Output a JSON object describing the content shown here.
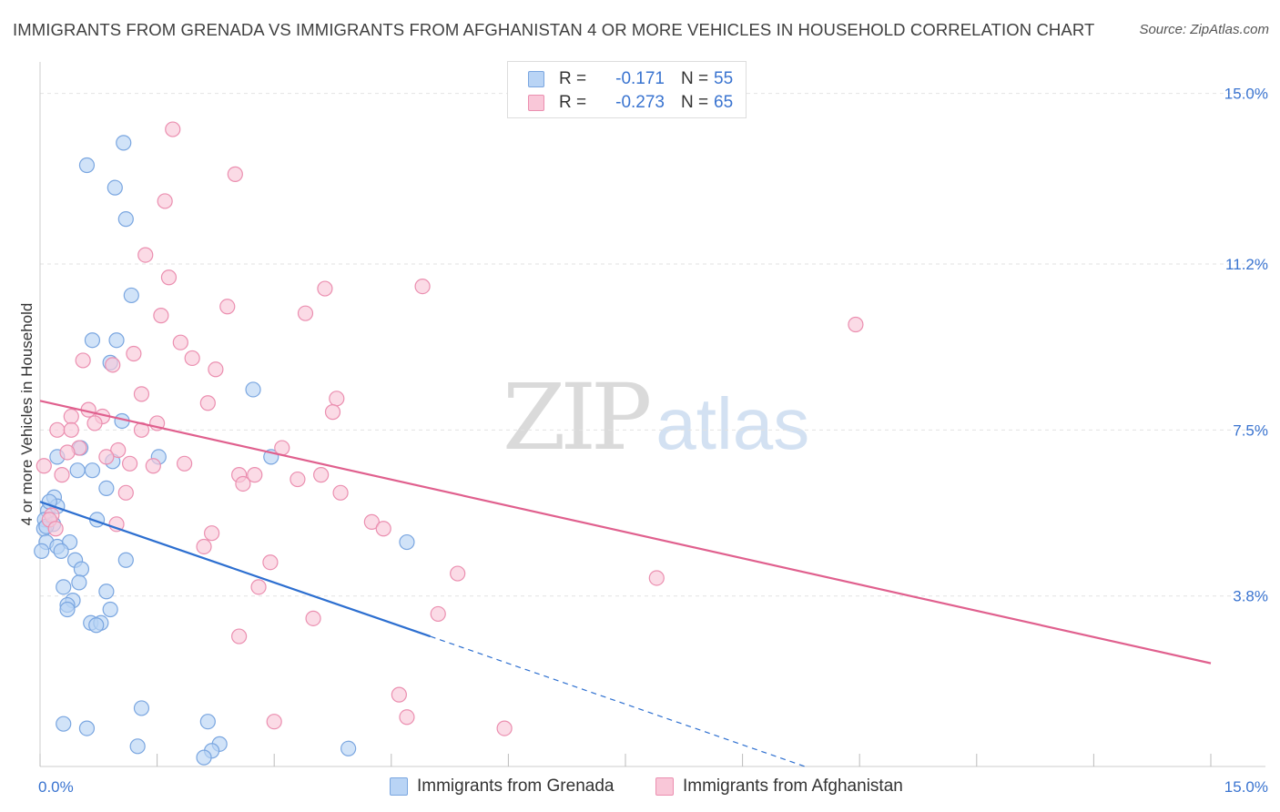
{
  "title": "IMMIGRANTS FROM GRENADA VS IMMIGRANTS FROM AFGHANISTAN 4 OR MORE VEHICLES IN HOUSEHOLD CORRELATION CHART",
  "source": "Source: ZipAtlas.com",
  "watermark": {
    "part1": "ZIP",
    "part2": "atlas"
  },
  "legend": {
    "series1": {
      "r_label": "R =",
      "r_value": "-0.171",
      "n_label": "N =",
      "n_value": "55"
    },
    "series2": {
      "r_label": "R =",
      "r_value": "-0.273",
      "n_label": "N =",
      "n_value": "65"
    }
  },
  "bottom_legend": {
    "grenada": "Immigrants from Grenada",
    "afghanistan": "Immigrants from Afghanistan"
  },
  "colors": {
    "grenada_fill": "#b9d4f5",
    "grenada_stroke": "#7aa6e0",
    "grenada_line": "#2d6fd0",
    "afghanistan_fill": "#f9c7d8",
    "afghanistan_stroke": "#eb8fb0",
    "afghanistan_line": "#e0608e",
    "tick_label": "#3a74d0",
    "grid": "#e2e2e2",
    "axis": "#cccccc"
  },
  "chart_data": {
    "type": "scatter",
    "title": "IMMIGRANTS FROM GRENADA VS IMMIGRANTS FROM AFGHANISTAN 4 OR MORE VEHICLES IN HOUSEHOLD CORRELATION CHART",
    "xlabel": "",
    "ylabel": "4 or more Vehicles in Household",
    "xlim": [
      0,
      15
    ],
    "ylim": [
      0,
      15.5
    ],
    "x_tick_labels": [
      {
        "value": 0,
        "label": "0.0%"
      },
      {
        "value": 15,
        "label": "15.0%"
      }
    ],
    "y_tick_labels": [
      {
        "value": 3.8,
        "label": "3.8%"
      },
      {
        "value": 7.5,
        "label": "7.5%"
      },
      {
        "value": 11.2,
        "label": "11.2%"
      },
      {
        "value": 15.0,
        "label": "15.0%"
      }
    ],
    "grid": true,
    "legend_position": "top-center",
    "series": [
      {
        "name": "Immigrants from Grenada",
        "color": "#7aa6e0",
        "points": [
          [
            1.07,
            13.9
          ],
          [
            0.6,
            13.4
          ],
          [
            0.96,
            12.9
          ],
          [
            1.1,
            12.2
          ],
          [
            1.17,
            10.5
          ],
          [
            0.67,
            9.5
          ],
          [
            0.98,
            9.5
          ],
          [
            0.9,
            9.0
          ],
          [
            2.73,
            8.4
          ],
          [
            1.05,
            7.7
          ],
          [
            0.52,
            7.1
          ],
          [
            1.52,
            6.9
          ],
          [
            2.96,
            6.9
          ],
          [
            0.22,
            6.9
          ],
          [
            0.93,
            6.8
          ],
          [
            0.48,
            6.6
          ],
          [
            0.67,
            6.6
          ],
          [
            0.85,
            6.2
          ],
          [
            0.18,
            6.0
          ],
          [
            0.1,
            5.7
          ],
          [
            0.22,
            5.8
          ],
          [
            0.06,
            5.5
          ],
          [
            0.17,
            5.4
          ],
          [
            0.73,
            5.5
          ],
          [
            0.05,
            5.3
          ],
          [
            0.08,
            5.0
          ],
          [
            0.22,
            4.9
          ],
          [
            0.38,
            5.0
          ],
          [
            0.27,
            4.8
          ],
          [
            4.7,
            5.0
          ],
          [
            1.1,
            4.6
          ],
          [
            0.45,
            4.6
          ],
          [
            0.53,
            4.4
          ],
          [
            0.3,
            4.0
          ],
          [
            0.5,
            4.1
          ],
          [
            0.85,
            3.9
          ],
          [
            0.42,
            3.7
          ],
          [
            0.35,
            3.6
          ],
          [
            0.35,
            3.5
          ],
          [
            0.9,
            3.5
          ],
          [
            0.65,
            3.2
          ],
          [
            0.78,
            3.2
          ],
          [
            0.72,
            3.15
          ],
          [
            0.02,
            4.8
          ],
          [
            1.3,
            1.3
          ],
          [
            0.3,
            0.95
          ],
          [
            0.6,
            0.85
          ],
          [
            2.15,
            1.0
          ],
          [
            1.25,
            0.45
          ],
          [
            2.3,
            0.5
          ],
          [
            2.2,
            0.35
          ],
          [
            3.95,
            0.4
          ],
          [
            2.1,
            0.2
          ],
          [
            0.12,
            5.9
          ],
          [
            0.08,
            5.35
          ]
        ]
      },
      {
        "name": "Immigrants from Afghanistan",
        "color": "#eb8fb0",
        "points": [
          [
            1.7,
            14.2
          ],
          [
            2.5,
            13.2
          ],
          [
            1.6,
            12.6
          ],
          [
            1.35,
            11.4
          ],
          [
            1.65,
            10.9
          ],
          [
            2.4,
            10.25
          ],
          [
            3.65,
            10.65
          ],
          [
            4.9,
            10.7
          ],
          [
            3.4,
            10.1
          ],
          [
            1.55,
            10.05
          ],
          [
            10.45,
            9.85
          ],
          [
            1.8,
            9.45
          ],
          [
            1.2,
            9.2
          ],
          [
            0.55,
            9.05
          ],
          [
            0.93,
            8.95
          ],
          [
            1.95,
            9.1
          ],
          [
            2.25,
            8.85
          ],
          [
            1.3,
            8.3
          ],
          [
            3.8,
            8.2
          ],
          [
            2.15,
            8.1
          ],
          [
            0.62,
            7.95
          ],
          [
            0.4,
            7.8
          ],
          [
            0.8,
            7.8
          ],
          [
            0.7,
            7.65
          ],
          [
            1.5,
            7.65
          ],
          [
            3.75,
            7.9
          ],
          [
            0.22,
            7.5
          ],
          [
            0.4,
            7.5
          ],
          [
            1.3,
            7.5
          ],
          [
            0.5,
            7.1
          ],
          [
            0.35,
            7.0
          ],
          [
            3.1,
            7.1
          ],
          [
            1.0,
            7.05
          ],
          [
            0.85,
            6.9
          ],
          [
            1.85,
            6.75
          ],
          [
            1.45,
            6.7
          ],
          [
            1.15,
            6.75
          ],
          [
            0.05,
            6.7
          ],
          [
            0.28,
            6.5
          ],
          [
            2.55,
            6.5
          ],
          [
            2.75,
            6.5
          ],
          [
            3.6,
            6.5
          ],
          [
            3.3,
            6.4
          ],
          [
            2.6,
            6.3
          ],
          [
            1.1,
            6.1
          ],
          [
            3.85,
            6.1
          ],
          [
            0.15,
            5.6
          ],
          [
            0.98,
            5.4
          ],
          [
            4.25,
            5.45
          ],
          [
            4.4,
            5.3
          ],
          [
            2.2,
            5.2
          ],
          [
            2.1,
            4.9
          ],
          [
            2.95,
            4.55
          ],
          [
            5.35,
            4.3
          ],
          [
            7.9,
            4.2
          ],
          [
            2.8,
            4.0
          ],
          [
            5.1,
            3.4
          ],
          [
            3.5,
            3.3
          ],
          [
            2.55,
            2.9
          ],
          [
            4.6,
            1.6
          ],
          [
            4.7,
            1.1
          ],
          [
            3.0,
            1.0
          ],
          [
            5.95,
            0.85
          ],
          [
            0.12,
            5.5
          ],
          [
            0.2,
            5.3
          ]
        ]
      }
    ],
    "trend_lines": [
      {
        "series": "Immigrants from Grenada",
        "solid": [
          [
            0,
            5.9
          ],
          [
            5.0,
            2.9
          ]
        ],
        "dashed": [
          [
            5.0,
            2.9
          ],
          [
            9.8,
            0.0
          ]
        ]
      },
      {
        "series": "Immigrants from Afghanistan",
        "solid": [
          [
            0,
            8.15
          ],
          [
            15.0,
            2.3
          ]
        ]
      }
    ]
  }
}
